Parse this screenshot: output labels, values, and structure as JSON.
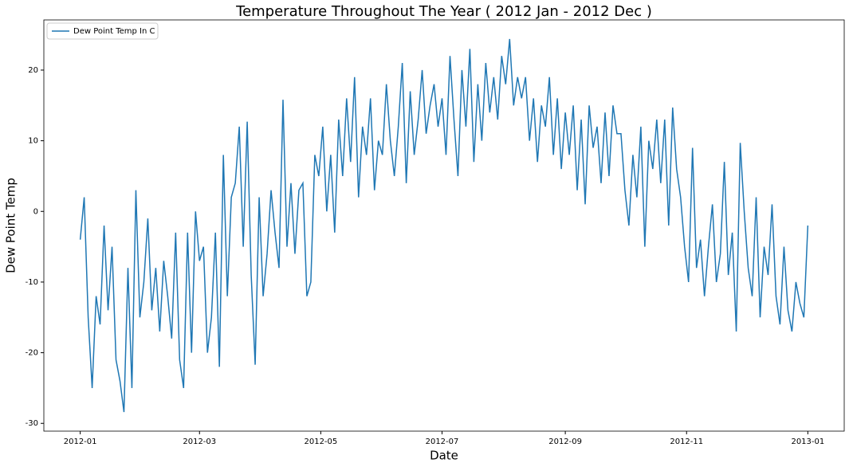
{
  "chart_data": {
    "type": "line",
    "title": "Temperature Throughout The Year ( 2012 Jan - 2012 Dec )",
    "xlabel": "Date",
    "ylabel": "Dew Point Temp",
    "x": [
      0,
      2,
      4,
      6,
      8,
      10,
      12,
      14,
      16,
      18,
      20,
      22,
      24,
      26,
      28,
      30,
      32,
      34,
      36,
      38,
      40,
      42,
      44,
      46,
      48,
      50,
      52,
      54,
      56,
      58,
      60,
      62,
      64,
      66,
      68,
      70,
      72,
      74,
      76,
      78,
      80,
      82,
      84,
      86,
      88,
      90,
      92,
      94,
      96,
      98,
      100,
      102,
      104,
      106,
      108,
      110,
      112,
      114,
      116,
      118,
      120,
      122,
      124,
      126,
      128,
      130,
      132,
      134,
      136,
      138,
      140,
      142,
      144,
      146,
      148,
      150,
      152,
      154,
      156,
      158,
      160,
      162,
      164,
      166,
      168,
      170,
      172,
      174,
      176,
      178,
      180,
      182,
      184,
      186,
      188,
      190,
      192,
      194,
      196,
      198,
      200,
      202,
      204,
      206,
      208,
      210,
      212,
      214,
      216,
      218,
      220,
      222,
      224,
      226,
      228,
      230,
      232,
      234,
      236,
      238,
      240,
      242,
      244,
      246,
      248,
      250,
      252,
      254,
      256,
      258,
      260,
      262,
      264,
      266,
      268,
      270,
      272,
      274,
      276,
      278,
      280,
      282,
      284,
      286,
      288,
      290,
      292,
      294,
      296,
      298,
      300,
      302,
      304,
      306,
      308,
      310,
      312,
      314,
      316,
      318,
      320,
      322,
      324,
      326,
      328,
      330,
      332,
      334,
      336,
      338,
      340,
      342,
      344,
      346,
      348,
      350,
      352,
      354,
      356,
      358,
      360,
      362,
      364,
      366
    ],
    "series": [
      {
        "name": "Dew Point Temp In C",
        "color": "#1f77b4",
        "values": [
          -4,
          2,
          -15,
          -25,
          -12,
          -16,
          -2,
          -14,
          -5,
          -21,
          -24,
          -28.4,
          -8,
          -25,
          3,
          -15,
          -10,
          -1,
          -14,
          -8,
          -17,
          -7,
          -12,
          -18,
          -3,
          -21,
          -25,
          -3,
          -20,
          0,
          -7,
          -5,
          -20,
          -15,
          -3,
          -22,
          8,
          -12,
          2,
          4,
          12,
          -5,
          12.7,
          -9,
          -21.7,
          2,
          -12,
          -6,
          3,
          -3,
          -8,
          15.8,
          -5,
          4,
          -6,
          3,
          4,
          -12,
          -10,
          8,
          5,
          12,
          0,
          8,
          -3,
          13,
          5,
          16,
          7,
          19,
          2,
          12,
          8,
          16,
          3,
          10,
          8,
          18,
          10,
          5,
          12,
          21,
          4,
          17,
          8,
          13,
          20,
          11,
          15,
          18,
          12,
          16,
          8,
          22,
          13,
          5,
          20,
          12,
          23,
          7,
          18,
          10,
          21,
          14,
          19,
          13,
          22,
          18,
          24.4,
          15,
          19,
          16,
          19,
          10,
          16,
          7,
          15,
          12,
          19,
          8,
          16,
          6,
          14,
          8,
          15,
          3,
          13,
          1,
          15,
          9,
          12,
          4,
          14,
          5,
          15,
          11,
          11,
          3,
          -2,
          8,
          2,
          12,
          -5,
          10,
          6,
          13,
          4,
          13,
          -2,
          14.7,
          6,
          2,
          -5,
          -10,
          9,
          -8,
          -4,
          -12,
          -5,
          1,
          -10,
          -6,
          7,
          -9,
          -3,
          -17,
          9.7,
          0,
          -8,
          -12,
          2,
          -15,
          -5,
          -9,
          1,
          -12,
          -16,
          -5,
          -14,
          -17,
          -10,
          -13,
          -15,
          -2
        ]
      }
    ],
    "xlim": [
      -18.3,
      384.3
    ],
    "xticks": [
      {
        "value": 0,
        "label": "2012-01"
      },
      {
        "value": 60,
        "label": "2012-03"
      },
      {
        "value": 121,
        "label": "2012-05"
      },
      {
        "value": 182,
        "label": "2012-07"
      },
      {
        "value": 244,
        "label": "2012-09"
      },
      {
        "value": 305,
        "label": "2012-11"
      },
      {
        "value": 366,
        "label": "2013-01"
      }
    ],
    "ylim": [
      -31.1,
      27.1
    ],
    "yticks": [
      -30,
      -20,
      -10,
      0,
      10,
      20
    ],
    "legend": "upper left"
  }
}
